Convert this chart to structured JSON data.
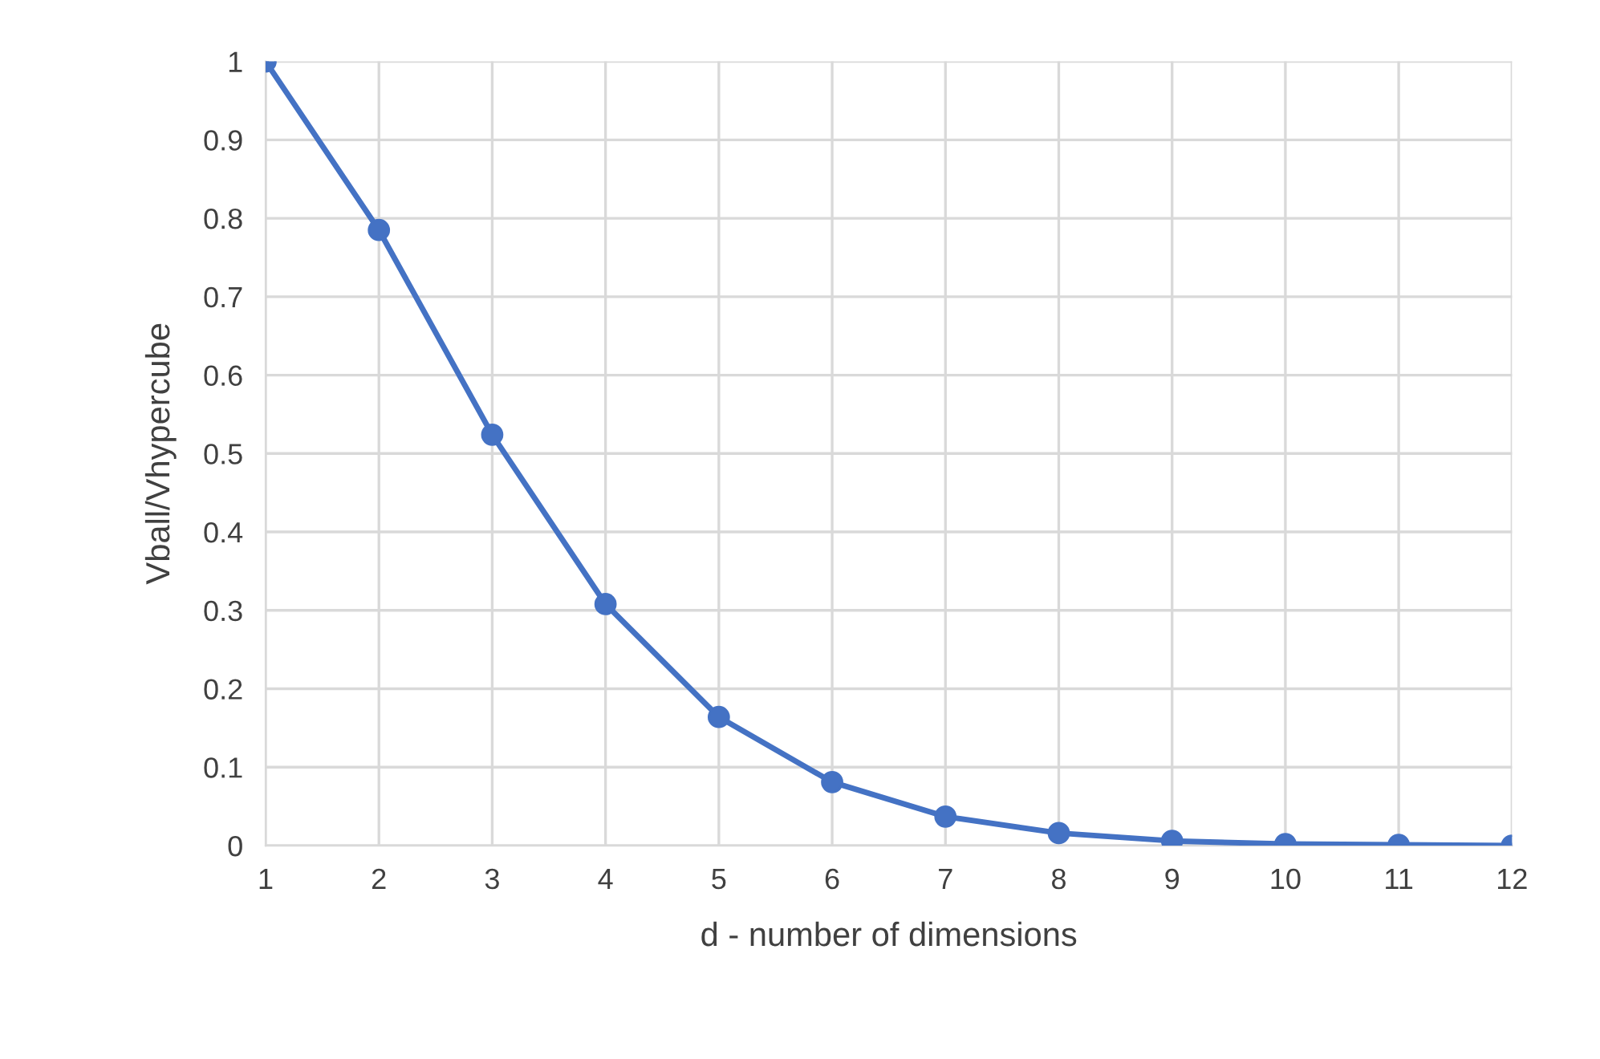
{
  "chart_data": {
    "type": "line",
    "xlabel": "d - number of dimensions",
    "ylabel": "Vball/Vhypercube",
    "x": [
      1,
      2,
      3,
      4,
      5,
      6,
      7,
      8,
      9,
      10,
      11,
      12
    ],
    "series": [
      {
        "color": "#4472c4",
        "values": [
          1,
          0.785,
          0.524,
          0.308,
          0.164,
          0.081,
          0.037,
          0.016,
          0.006,
          0.002,
          0.001,
          0.0
        ]
      }
    ],
    "xlim": [
      1,
      12
    ],
    "xticks": [
      1,
      2,
      3,
      4,
      5,
      6,
      7,
      8,
      9,
      10,
      11,
      12
    ],
    "ylim": [
      0,
      1
    ],
    "yticks": [
      0,
      0.1,
      0.2,
      0.3,
      0.4,
      0.5,
      0.6,
      0.7,
      0.8,
      0.9,
      1
    ],
    "grid": true,
    "marker": "circle",
    "line_style": "solid"
  }
}
